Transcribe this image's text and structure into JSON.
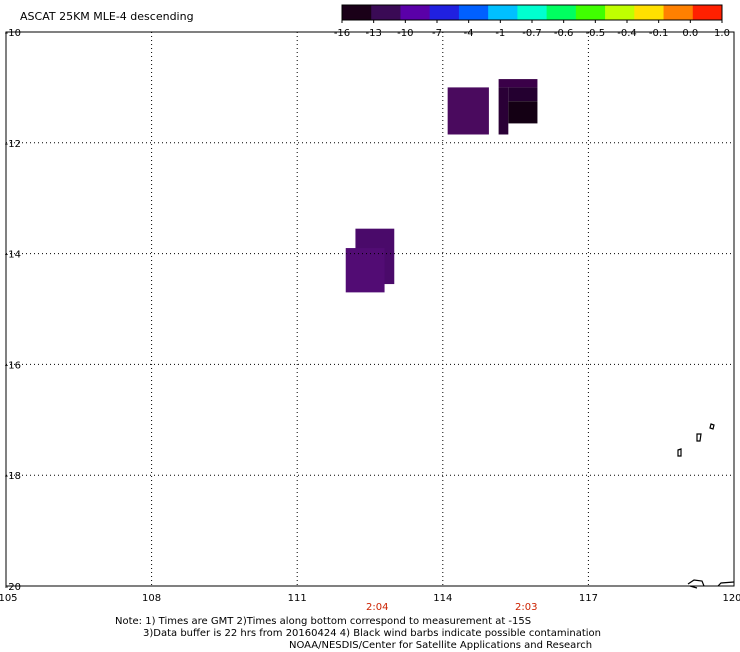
{
  "title": "ASCAT 25KM MLE-4 descending",
  "colorbar": {
    "labels": [
      "-16",
      "-13",
      "-10",
      "-7",
      "-4",
      "-1",
      "-0.7",
      "-0.6",
      "-0.5",
      "-0.4",
      "-0.1",
      "0.0",
      "1.0"
    ],
    "colors": [
      "#1a0018",
      "#3a0a55",
      "#5a00a8",
      "#2020e0",
      "#0060ff",
      "#00c0ff",
      "#00ffd0",
      "#00ff60",
      "#40ff00",
      "#c0ff00",
      "#ffe000",
      "#ff8000",
      "#ff2000"
    ]
  },
  "axes": {
    "lat_labels": [
      "-10",
      "-12",
      "-14",
      "-16",
      "-18",
      "-20"
    ],
    "lon_labels": [
      "105",
      "108",
      "111",
      "114",
      "117",
      "120"
    ]
  },
  "time_labels": [
    "2:04",
    "2:03"
  ],
  "notes": [
    "Note: 1) Times are GMT 2)Times along bottom correspond to measurement at -15S",
    "3)Data buffer is 22 hrs from 20160424 4) Black wind barbs indicate possible contamination",
    "NOAA/NESDIS/Center for Satellite Applications and Research"
  ],
  "swath_blocks": [
    {
      "lon0": 114.1,
      "lon1": 114.95,
      "lat0": -11.85,
      "lat1": -11.0,
      "color": "#4a0a5e"
    },
    {
      "lon0": 115.15,
      "lon1": 115.95,
      "lat0": -11.0,
      "lat1": -10.85,
      "color": "#3a0048"
    },
    {
      "lon0": 115.15,
      "lon1": 115.35,
      "lat0": -11.85,
      "lat1": -11.0,
      "color": "#2a0036"
    },
    {
      "lon0": 115.35,
      "lon1": 115.95,
      "lat0": -11.25,
      "lat1": -11.0,
      "color": "#240030"
    },
    {
      "lon0": 115.35,
      "lon1": 115.95,
      "lat0": -11.65,
      "lat1": -11.25,
      "color": "#140014"
    },
    {
      "lon0": 112.2,
      "lon1": 113.0,
      "lat0": -14.55,
      "lat1": -13.55,
      "color": "#4a0a6a"
    },
    {
      "lon0": 112.0,
      "lon1": 112.8,
      "lat0": -14.7,
      "lat1": -13.9,
      "color": "#520c74"
    }
  ]
}
